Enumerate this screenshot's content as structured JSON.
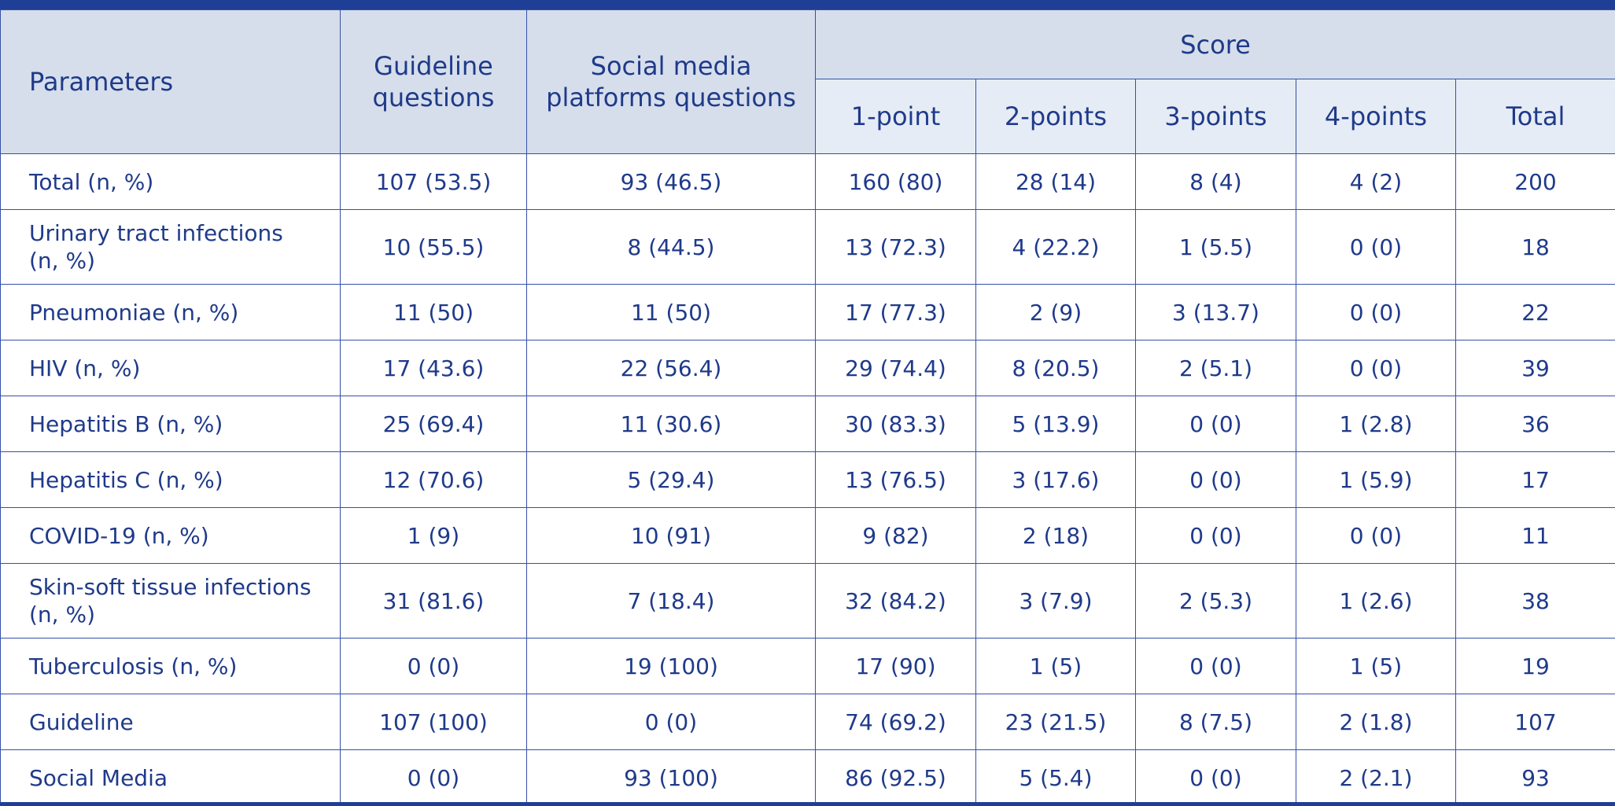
{
  "table": {
    "headers": {
      "parameters": "Parameters",
      "guideline_line1": "Guideline",
      "guideline_line2": "questions",
      "social_line1": "Social media",
      "social_line2": "platforms questions",
      "score": "Score",
      "score_cols": [
        "1-point",
        "2-points",
        "3-points",
        "4-points",
        "Total"
      ]
    },
    "rows": [
      {
        "name": "Total (n, %)",
        "cells": [
          "107 (53.5)",
          "93 (46.5)",
          "160 (80)",
          "28 (14)",
          "8 (4)",
          "4 (2)",
          "200"
        ]
      },
      {
        "name_line1": "Urinary tract infections",
        "name_line2": "(n, %)",
        "cells": [
          "10 (55.5)",
          "8 (44.5)",
          "13 (72.3)",
          "4 (22.2)",
          "1 (5.5)",
          "0 (0)",
          "18"
        ]
      },
      {
        "name": "Pneumoniae (n, %)",
        "cells": [
          "11 (50)",
          "11 (50)",
          "17 (77.3)",
          "2 (9)",
          "3 (13.7)",
          "0 (0)",
          "22"
        ]
      },
      {
        "name": "HIV (n, %)",
        "cells": [
          "17 (43.6)",
          "22 (56.4)",
          "29 (74.4)",
          "8 (20.5)",
          "2 (5.1)",
          "0 (0)",
          "39"
        ]
      },
      {
        "name": "Hepatitis B (n, %)",
        "cells": [
          "25 (69.4)",
          "11 (30.6)",
          "30 (83.3)",
          "5 (13.9)",
          "0 (0)",
          "1 (2.8)",
          "36"
        ]
      },
      {
        "name": "Hepatitis C (n, %)",
        "cells": [
          "12 (70.6)",
          "5 (29.4)",
          "13 (76.5)",
          "3 (17.6)",
          "0 (0)",
          "1 (5.9)",
          "17"
        ]
      },
      {
        "name": "COVID-19 (n, %)",
        "cells": [
          "1 (9)",
          "10 (91)",
          "9 (82)",
          "2 (18)",
          "0 (0)",
          "0 (0)",
          "11"
        ]
      },
      {
        "name_line1": "Skin-soft tissue infections",
        "name_line2": "(n, %)",
        "cells": [
          "31 (81.6)",
          "7 (18.4)",
          "32 (84.2)",
          "3 (7.9)",
          "2 (5.3)",
          "1 (2.6)",
          "38"
        ]
      },
      {
        "name": "Tuberculosis (n, %)",
        "cells": [
          "0 (0)",
          "19 (100)",
          "17 (90)",
          "1 (5)",
          "0 (0)",
          "1 (5)",
          "19"
        ]
      },
      {
        "name": "Guideline",
        "cells": [
          "107 (100)",
          "0 (0)",
          "74 (69.2)",
          "23 (21.5)",
          "8 (7.5)",
          "2 (1.8)",
          "107"
        ]
      },
      {
        "name": "Social Media",
        "cells": [
          "0 (0)",
          "93 (100)",
          "86 (92.5)",
          "5 (5.4)",
          "0 (0)",
          "2 (2.1)",
          "93"
        ]
      }
    ]
  }
}
